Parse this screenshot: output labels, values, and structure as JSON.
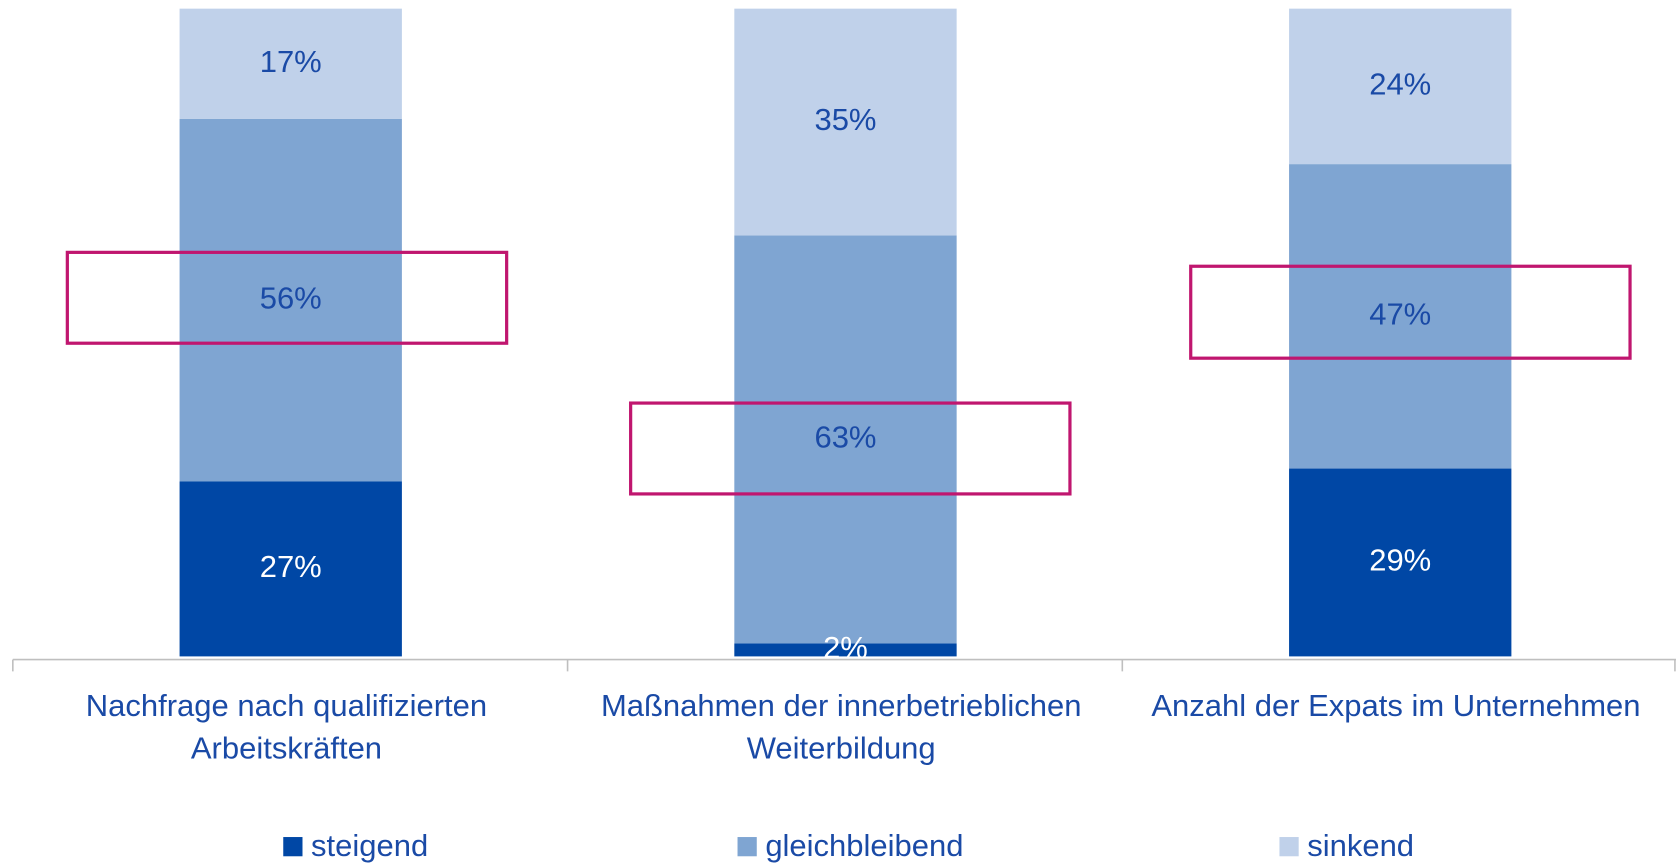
{
  "chart_data": {
    "type": "stacked_bar",
    "categories": [
      [
        "Nachfrage nach qualifizierten",
        "Arbeitskräften"
      ],
      [
        "Maßnahmen der innerbetrieblichen",
        "Weiterbildung"
      ],
      [
        "Anzahl der Expats im Unternehmen"
      ]
    ],
    "series": [
      {
        "name": "steigend",
        "color": "#0047a5",
        "label_color": "#ffffff",
        "values": [
          27,
          2,
          29
        ],
        "value_labels": [
          "27%",
          "2%",
          "29%"
        ]
      },
      {
        "name": "gleichbleibend",
        "color": "#7fa5d2",
        "label_color": "#1a4aa6",
        "values": [
          56,
          63,
          47
        ],
        "value_labels": [
          "56%",
          "63%",
          "47%"
        ]
      },
      {
        "name": "sinkend",
        "color": "#c0d1ea",
        "label_color": "#1a4aa6",
        "values": [
          17,
          35,
          24
        ],
        "value_labels": [
          "17%",
          "35%",
          "24%"
        ]
      }
    ],
    "ylim": [
      0,
      100
    ]
  }
}
